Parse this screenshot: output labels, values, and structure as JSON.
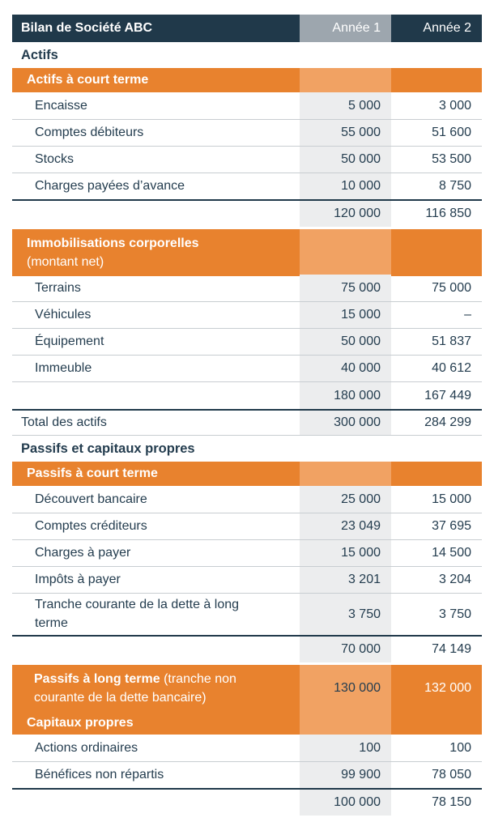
{
  "header": {
    "title": "Bilan de Société ABC",
    "year1": "Année 1",
    "year2": "Année 2"
  },
  "colors": {
    "navy": "#20394A",
    "gray_header": "#9DA6AE",
    "orange": "#E8822E",
    "orange_light": "#F1A263",
    "column_band": "#ECEDEE",
    "row_line": "#C8CDD1",
    "text": "#243D4F"
  },
  "actifs": {
    "heading": "Actifs",
    "court_terme": {
      "title": "Actifs à court terme",
      "rows": [
        {
          "label": "Encaisse",
          "y1": "5 000",
          "y2": "3 000"
        },
        {
          "label": "Comptes débiteurs",
          "y1": "55 000",
          "y2": "51 600"
        },
        {
          "label": "Stocks",
          "y1": "50 000",
          "y2": "53 500"
        },
        {
          "label": "Charges payées d’avance",
          "y1": "10 000",
          "y2": "8 750"
        }
      ],
      "subtotal": {
        "y1": "120 000",
        "y2": "116 850"
      }
    },
    "immobilisations": {
      "title_bold": "Immobilisations corporelles",
      "title_rest": "(montant net)",
      "rows": [
        {
          "label": "Terrains",
          "y1": "75 000",
          "y2": "75 000"
        },
        {
          "label": "Véhicules",
          "y1": "15 000",
          "y2": "–"
        },
        {
          "label": "Équipement",
          "y1": "50 000",
          "y2": "51 837"
        },
        {
          "label": "Immeuble",
          "y1": "40 000",
          "y2": "40 612"
        }
      ],
      "subtotal": {
        "y1": "180 000",
        "y2": "167 449"
      }
    },
    "total": {
      "label": "Total des actifs",
      "y1": "300 000",
      "y2": "284 299"
    }
  },
  "passifs": {
    "heading": "Passifs et capitaux propres",
    "court_terme": {
      "title": "Passifs à court terme",
      "rows": [
        {
          "label": "Découvert bancaire",
          "y1": "25 000",
          "y2": "15 000"
        },
        {
          "label": "Comptes créditeurs",
          "y1": "23 049",
          "y2": "37 695"
        },
        {
          "label": "Charges à payer",
          "y1": "15 000",
          "y2": "14 500"
        },
        {
          "label": "Impôts à payer",
          "y1": "3 201",
          "y2": "3 204"
        },
        {
          "label": "Tranche courante de la dette à long terme",
          "y1": "3 750",
          "y2": "3 750"
        }
      ],
      "subtotal": {
        "y1": "70 000",
        "y2": "74 149"
      }
    },
    "long_terme": {
      "title_bold": "Passifs à long terme",
      "title_rest": " (tranche non courante de la dette bancaire)",
      "y1": "130 000",
      "y2": "132 000"
    },
    "capitaux": {
      "title": "Capitaux propres",
      "rows": [
        {
          "label": "Actions ordinaires",
          "y1": "100",
          "y2": "100"
        },
        {
          "label": "Bénéfices non répartis",
          "y1": "99 900",
          "y2": "78 050"
        }
      ],
      "subtotal": {
        "y1": "100 000",
        "y2": "78 150"
      }
    }
  }
}
